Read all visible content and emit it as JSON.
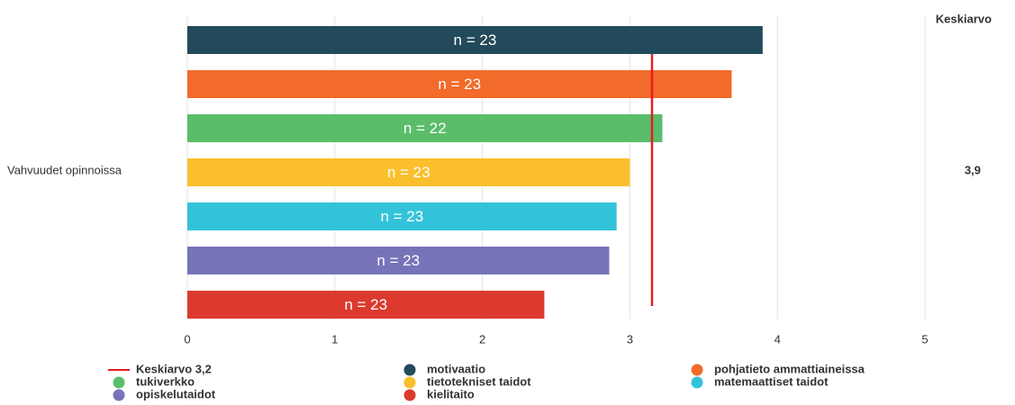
{
  "chart_data": {
    "type": "bar",
    "orientation": "horizontal",
    "categories": [
      "Vahvuudet opinnoissa"
    ],
    "series": [
      {
        "name": "motivaatio",
        "color": "#224a5a",
        "values": [
          3.9
        ],
        "value_labels": [
          "n = 23"
        ]
      },
      {
        "name": "pohjatieto ammattiaineissa",
        "color": "#f26b2a",
        "values": [
          3.69
        ],
        "value_labels": [
          "n = 23"
        ]
      },
      {
        "name": "tukiverkko",
        "color": "#5bbd6a",
        "values": [
          3.22
        ],
        "value_labels": [
          "n = 22"
        ]
      },
      {
        "name": "tietotekniset taidot",
        "color": "#fbbf2e",
        "values": [
          3.0
        ],
        "value_labels": [
          "n = 23"
        ]
      },
      {
        "name": "matemaattiset taidot",
        "color": "#33c3d9",
        "values": [
          2.91
        ],
        "value_labels": [
          "n = 23"
        ]
      },
      {
        "name": "opiskelutaidot",
        "color": "#7673b8",
        "values": [
          2.86
        ],
        "value_labels": [
          "n = 23"
        ]
      },
      {
        "name": "kielitaito",
        "color": "#dc3a2f",
        "values": [
          2.42
        ],
        "value_labels": [
          "n = 23"
        ]
      }
    ],
    "mean": {
      "value": 3.15,
      "label": "Keskiarvo 3,2",
      "color": "#e41e26"
    },
    "xlim": [
      0,
      5
    ],
    "xticks": [
      0,
      1,
      2,
      3,
      4,
      5
    ],
    "grid": true,
    "side_column": {
      "header": "Keskiarvo",
      "values": [
        "3,9"
      ]
    }
  }
}
